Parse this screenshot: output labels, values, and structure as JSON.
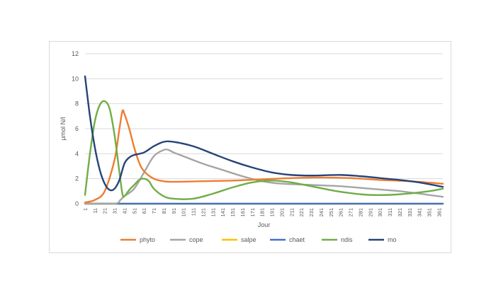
{
  "chart_data": {
    "type": "line",
    "xlabel": "Jour",
    "ylabel": "µmol N/l",
    "ylim": [
      0,
      12
    ],
    "yticks": [
      0,
      2,
      4,
      6,
      8,
      10,
      12
    ],
    "x_tick_labels": [
      "1",
      "11",
      "21",
      "31",
      "41",
      "51",
      "61",
      "71",
      "81",
      "91",
      "101",
      "111",
      "121",
      "131",
      "141",
      "151",
      "161",
      "171",
      "181",
      "191",
      "201",
      "211",
      "221",
      "231",
      "241",
      "251",
      "261",
      "271",
      "281",
      "291",
      "301",
      "311",
      "321",
      "331",
      "341",
      "351",
      "361"
    ],
    "grid": "horizontal",
    "legend_position": "bottom",
    "series": [
      {
        "name": "phyto",
        "color": "#ed7d31",
        "points": [
          [
            1,
            0.1
          ],
          [
            11,
            0.3
          ],
          [
            21,
            1.0
          ],
          [
            31,
            3.5
          ],
          [
            36,
            6.0
          ],
          [
            39,
            7.4
          ],
          [
            41,
            7.2
          ],
          [
            46,
            6.0
          ],
          [
            51,
            4.5
          ],
          [
            56,
            3.3
          ],
          [
            61,
            2.6
          ],
          [
            71,
            2.0
          ],
          [
            81,
            1.8
          ],
          [
            91,
            1.75
          ],
          [
            121,
            1.8
          ],
          [
            151,
            1.85
          ],
          [
            181,
            1.95
          ],
          [
            211,
            2.05
          ],
          [
            241,
            2.1
          ],
          [
            271,
            2.05
          ],
          [
            301,
            1.9
          ],
          [
            331,
            1.8
          ],
          [
            365,
            1.6
          ]
        ]
      },
      {
        "name": "cope",
        "color": "#a5a5a5",
        "points": [
          [
            1,
            0
          ],
          [
            31,
            0
          ],
          [
            37,
            0.3
          ],
          [
            41,
            0.6
          ],
          [
            51,
            1.2
          ],
          [
            61,
            2.5
          ],
          [
            71,
            3.8
          ],
          [
            81,
            4.3
          ],
          [
            86,
            4.3
          ],
          [
            91,
            4.1
          ],
          [
            101,
            3.8
          ],
          [
            121,
            3.2
          ],
          [
            141,
            2.7
          ],
          [
            161,
            2.2
          ],
          [
            181,
            1.8
          ],
          [
            201,
            1.6
          ],
          [
            231,
            1.5
          ],
          [
            261,
            1.4
          ],
          [
            291,
            1.2
          ],
          [
            321,
            1.0
          ],
          [
            351,
            0.7
          ],
          [
            365,
            0.55
          ]
        ]
      },
      {
        "name": "salpe",
        "color": "#ffc000",
        "points": [
          [
            1,
            0
          ],
          [
            365,
            0
          ]
        ]
      },
      {
        "name": "chaet",
        "color": "#4472c4",
        "points": [
          [
            1,
            0
          ],
          [
            365,
            0
          ]
        ]
      },
      {
        "name": "ndis",
        "color": "#70ad47",
        "points": [
          [
            1,
            0.7
          ],
          [
            6,
            4.0
          ],
          [
            11,
            6.6
          ],
          [
            16,
            7.9
          ],
          [
            21,
            8.2
          ],
          [
            26,
            7.6
          ],
          [
            31,
            5.5
          ],
          [
            36,
            2.5
          ],
          [
            39,
            0.8
          ],
          [
            41,
            0.6
          ],
          [
            46,
            1.1
          ],
          [
            51,
            1.5
          ],
          [
            56,
            1.9
          ],
          [
            61,
            2.0
          ],
          [
            66,
            1.8
          ],
          [
            71,
            1.2
          ],
          [
            81,
            0.6
          ],
          [
            91,
            0.4
          ],
          [
            111,
            0.4
          ],
          [
            131,
            0.8
          ],
          [
            151,
            1.3
          ],
          [
            171,
            1.7
          ],
          [
            191,
            1.85
          ],
          [
            211,
            1.7
          ],
          [
            231,
            1.4
          ],
          [
            261,
            0.95
          ],
          [
            291,
            0.7
          ],
          [
            321,
            0.75
          ],
          [
            351,
            1.0
          ],
          [
            365,
            1.2
          ]
        ]
      },
      {
        "name": "mo",
        "color": "#264478",
        "points": [
          [
            1,
            10.2
          ],
          [
            6,
            7.0
          ],
          [
            11,
            4.5
          ],
          [
            16,
            2.7
          ],
          [
            21,
            1.6
          ],
          [
            26,
            1.1
          ],
          [
            31,
            1.2
          ],
          [
            36,
            1.9
          ],
          [
            41,
            3.2
          ],
          [
            46,
            3.7
          ],
          [
            51,
            3.9
          ],
          [
            61,
            4.1
          ],
          [
            71,
            4.6
          ],
          [
            81,
            4.95
          ],
          [
            91,
            4.95
          ],
          [
            111,
            4.6
          ],
          [
            131,
            4.0
          ],
          [
            151,
            3.4
          ],
          [
            171,
            2.9
          ],
          [
            191,
            2.5
          ],
          [
            211,
            2.3
          ],
          [
            231,
            2.25
          ],
          [
            261,
            2.3
          ],
          [
            281,
            2.2
          ],
          [
            301,
            2.05
          ],
          [
            321,
            1.9
          ],
          [
            341,
            1.7
          ],
          [
            365,
            1.35
          ]
        ]
      }
    ]
  }
}
